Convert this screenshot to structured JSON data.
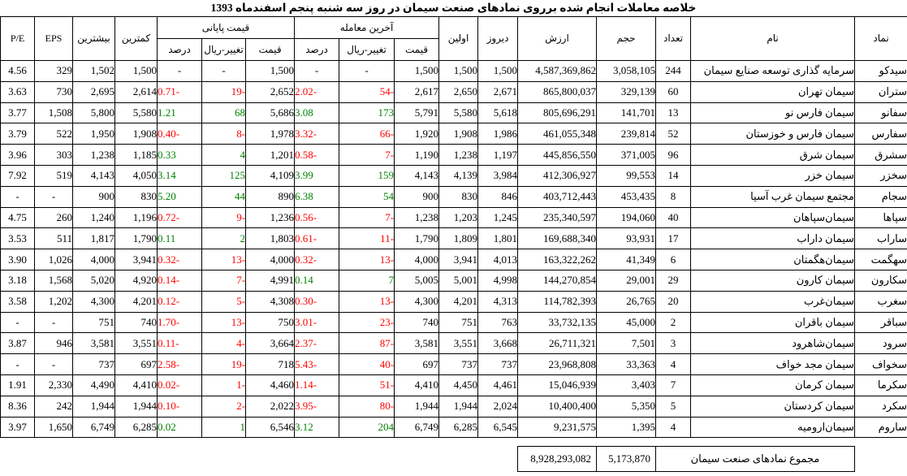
{
  "title": "خلاصه معاملات انجام شده برروی نمادهای صنعت سیمان در روز سه شنبه پنجم اسفندماه 1393",
  "colors": {
    "negative": "#FF0000",
    "positive": "#008000",
    "text": "#000000",
    "border": "#000000",
    "background": "#FFFFFF"
  },
  "table": {
    "headers": {
      "symbol": "نماد",
      "name": "نام",
      "count": "تعداد",
      "volume": "حجم",
      "value": "ارزش",
      "yesterday": "دیروز",
      "first": "اولین",
      "last_trade_group": "آخرین معامله",
      "closing_group": "قیمت پایانی",
      "price": "قیمت",
      "change_rial": "تغییر-ریال",
      "percent": "درصد",
      "lowest": "کمترین",
      "highest": "بیشترین",
      "eps": "EPS",
      "pe": "P/E"
    },
    "rows": [
      {
        "symbol": "سیدکو",
        "name": "سرمایه گذاری توسعه صنایع سیمان",
        "count": "244",
        "volume": "3,058,105",
        "value": "4,587,369,862",
        "yesterday": "1,500",
        "first": "1,500",
        "last_price": "1,500",
        "last_change": "-",
        "last_percent": "-",
        "last_dir": "none",
        "close_price": "1,500",
        "close_change": "-",
        "close_percent": "-",
        "close_dir": "none",
        "lowest": "1,500",
        "highest": "1,502",
        "eps": "329",
        "pe": "4.56"
      },
      {
        "symbol": "ستران",
        "name": "سیمان تهران",
        "count": "60",
        "volume": "329,139",
        "value": "865,800,037",
        "yesterday": "2,671",
        "first": "2,650",
        "last_price": "2,617",
        "last_change": "54-",
        "last_percent": "2.02-",
        "last_dir": "down",
        "close_price": "2,652",
        "close_change": "19-",
        "close_percent": "0.71-",
        "close_dir": "down",
        "lowest": "2,614",
        "highest": "2,695",
        "eps": "730",
        "pe": "3.63"
      },
      {
        "symbol": "سفانو",
        "name": "سیمان فارس نو",
        "count": "13",
        "volume": "141,701",
        "value": "805,696,291",
        "yesterday": "5,618",
        "first": "5,580",
        "last_price": "5,791",
        "last_change": "173",
        "last_percent": "3.08",
        "last_dir": "up",
        "close_price": "5,686",
        "close_change": "68",
        "close_percent": "1.21",
        "close_dir": "up",
        "lowest": "5,580",
        "highest": "5,800",
        "eps": "1,508",
        "pe": "3.77"
      },
      {
        "symbol": "سفارس",
        "name": "سیمان فارس و خوزستان",
        "count": "52",
        "volume": "239,814",
        "value": "461,055,348",
        "yesterday": "1,986",
        "first": "1,908",
        "last_price": "1,920",
        "last_change": "66-",
        "last_percent": "3.32-",
        "last_dir": "down",
        "close_price": "1,978",
        "close_change": "8-",
        "close_percent": "0.40-",
        "close_dir": "down",
        "lowest": "1,908",
        "highest": "1,950",
        "eps": "522",
        "pe": "3.79"
      },
      {
        "symbol": "سشرق",
        "name": "سیمان شرق",
        "count": "96",
        "volume": "371,005",
        "value": "445,856,550",
        "yesterday": "1,197",
        "first": "1,238",
        "last_price": "1,190",
        "last_change": "7-",
        "last_percent": "0.58-",
        "last_dir": "down",
        "close_price": "1,201",
        "close_change": "4",
        "close_percent": "0.33",
        "close_dir": "up",
        "lowest": "1,185",
        "highest": "1,238",
        "eps": "303",
        "pe": "3.96"
      },
      {
        "symbol": "سخزر",
        "name": "سیمان خزر",
        "count": "14",
        "volume": "99,553",
        "value": "412,306,927",
        "yesterday": "3,984",
        "first": "4,139",
        "last_price": "4,143",
        "last_change": "159",
        "last_percent": "3.99",
        "last_dir": "up",
        "close_price": "4,109",
        "close_change": "125",
        "close_percent": "3.14",
        "close_dir": "up",
        "lowest": "4,050",
        "highest": "4,143",
        "eps": "519",
        "pe": "7.92"
      },
      {
        "symbol": "سجام",
        "name": "مجتمع سیمان غرب آسیا",
        "count": "8",
        "volume": "453,435",
        "value": "403,712,443",
        "yesterday": "846",
        "first": "830",
        "last_price": "900",
        "last_change": "54",
        "last_percent": "6.38",
        "last_dir": "up",
        "close_price": "890",
        "close_change": "44",
        "close_percent": "5.20",
        "close_dir": "up",
        "lowest": "830",
        "highest": "900",
        "eps": "-",
        "pe": "-"
      },
      {
        "symbol": "سپاها",
        "name": "سیمان‌سپاهان",
        "count": "40",
        "volume": "194,060",
        "value": "235,340,597",
        "yesterday": "1,245",
        "first": "1,203",
        "last_price": "1,238",
        "last_change": "7-",
        "last_percent": "0.56-",
        "last_dir": "down",
        "close_price": "1,236",
        "close_change": "9-",
        "close_percent": "0.72-",
        "close_dir": "down",
        "lowest": "1,196",
        "highest": "1,240",
        "eps": "260",
        "pe": "4.75"
      },
      {
        "symbol": "ساراب",
        "name": "سیمان داراب",
        "count": "17",
        "volume": "93,931",
        "value": "169,688,340",
        "yesterday": "1,801",
        "first": "1,809",
        "last_price": "1,790",
        "last_change": "11-",
        "last_percent": "0.61-",
        "last_dir": "down",
        "close_price": "1,803",
        "close_change": "2",
        "close_percent": "0.11",
        "close_dir": "up",
        "lowest": "1,790",
        "highest": "1,817",
        "eps": "511",
        "pe": "3.53"
      },
      {
        "symbol": "سهگمت",
        "name": "سیمان‌هگمتان",
        "count": "6",
        "volume": "41,349",
        "value": "163,322,262",
        "yesterday": "4,013",
        "first": "3,941",
        "last_price": "4,000",
        "last_change": "13-",
        "last_percent": "0.32-",
        "last_dir": "down",
        "close_price": "4,000",
        "close_change": "13-",
        "close_percent": "0.32-",
        "close_dir": "down",
        "lowest": "3,941",
        "highest": "4,000",
        "eps": "1,026",
        "pe": "3.90"
      },
      {
        "symbol": "سکارون",
        "name": "سیمان کارون",
        "count": "29",
        "volume": "29,001",
        "value": "144,270,854",
        "yesterday": "4,998",
        "first": "5,001",
        "last_price": "5,005",
        "last_change": "7",
        "last_percent": "0.14",
        "last_dir": "up",
        "close_price": "4,991",
        "close_change": "7-",
        "close_percent": "0.14-",
        "close_dir": "down",
        "lowest": "4,920",
        "highest": "5,020",
        "eps": "1,568",
        "pe": "3.18"
      },
      {
        "symbol": "سغرب",
        "name": "سیمان‌غرب",
        "count": "20",
        "volume": "26,765",
        "value": "114,782,393",
        "yesterday": "4,313",
        "first": "4,201",
        "last_price": "4,300",
        "last_change": "13-",
        "last_percent": "0.30-",
        "last_dir": "down",
        "close_price": "4,308",
        "close_change": "5-",
        "close_percent": "0.12-",
        "close_dir": "down",
        "lowest": "4,201",
        "highest": "4,300",
        "eps": "1,202",
        "pe": "3.58"
      },
      {
        "symbol": "سباقر",
        "name": "سیمان باقران",
        "count": "2",
        "volume": "45,000",
        "value": "33,732,135",
        "yesterday": "763",
        "first": "751",
        "last_price": "740",
        "last_change": "23-",
        "last_percent": "3.01-",
        "last_dir": "down",
        "close_price": "750",
        "close_change": "13-",
        "close_percent": "1.70-",
        "close_dir": "down",
        "lowest": "740",
        "highest": "751",
        "eps": "-",
        "pe": "-"
      },
      {
        "symbol": "سرود",
        "name": "سیمان‌شاهرود",
        "count": "3",
        "volume": "7,501",
        "value": "26,711,321",
        "yesterday": "3,668",
        "first": "3,551",
        "last_price": "3,581",
        "last_change": "87-",
        "last_percent": "2.37-",
        "last_dir": "down",
        "close_price": "3,664",
        "close_change": "4-",
        "close_percent": "0.11-",
        "close_dir": "down",
        "lowest": "3,551",
        "highest": "3,581",
        "eps": "946",
        "pe": "3.87"
      },
      {
        "symbol": "سخواف",
        "name": "سیمان مجد خواف",
        "count": "4",
        "volume": "33,363",
        "value": "23,968,808",
        "yesterday": "737",
        "first": "737",
        "last_price": "697",
        "last_change": "40-",
        "last_percent": "5.43-",
        "last_dir": "down",
        "close_price": "718",
        "close_change": "19-",
        "close_percent": "2.58-",
        "close_dir": "down",
        "lowest": "697",
        "highest": "737",
        "eps": "-",
        "pe": "-"
      },
      {
        "symbol": "سکرما",
        "name": "سیمان کرمان",
        "count": "7",
        "volume": "3,403",
        "value": "15,046,939",
        "yesterday": "4,461",
        "first": "4,450",
        "last_price": "4,410",
        "last_change": "51-",
        "last_percent": "1.14-",
        "last_dir": "down",
        "close_price": "4,460",
        "close_change": "1-",
        "close_percent": "0.02-",
        "close_dir": "down",
        "lowest": "4,410",
        "highest": "4,490",
        "eps": "2,330",
        "pe": "1.91"
      },
      {
        "symbol": "سکرد",
        "name": "سیمان کردستان",
        "count": "5",
        "volume": "5,350",
        "value": "10,400,400",
        "yesterday": "2,024",
        "first": "1,944",
        "last_price": "1,944",
        "last_change": "80-",
        "last_percent": "3.95-",
        "last_dir": "down",
        "close_price": "2,022",
        "close_change": "2-",
        "close_percent": "0.10-",
        "close_dir": "down",
        "lowest": "1,944",
        "highest": "1,944",
        "eps": "242",
        "pe": "8.36"
      },
      {
        "symbol": "ساروم",
        "name": "سیمان‌ارومیه",
        "count": "4",
        "volume": "1,395",
        "value": "9,231,575",
        "yesterday": "6,545",
        "first": "6,285",
        "last_price": "6,749",
        "last_change": "204",
        "last_percent": "3.12",
        "last_dir": "up",
        "close_price": "6,546",
        "close_change": "1",
        "close_percent": "0.02",
        "close_dir": "up",
        "lowest": "6,285",
        "highest": "6,749",
        "eps": "1,650",
        "pe": "3.97"
      }
    ],
    "footer": {
      "label": "مجموع نمادهای صنعت سیمان",
      "volume": "5,173,870",
      "value": "8,928,293,082"
    }
  }
}
